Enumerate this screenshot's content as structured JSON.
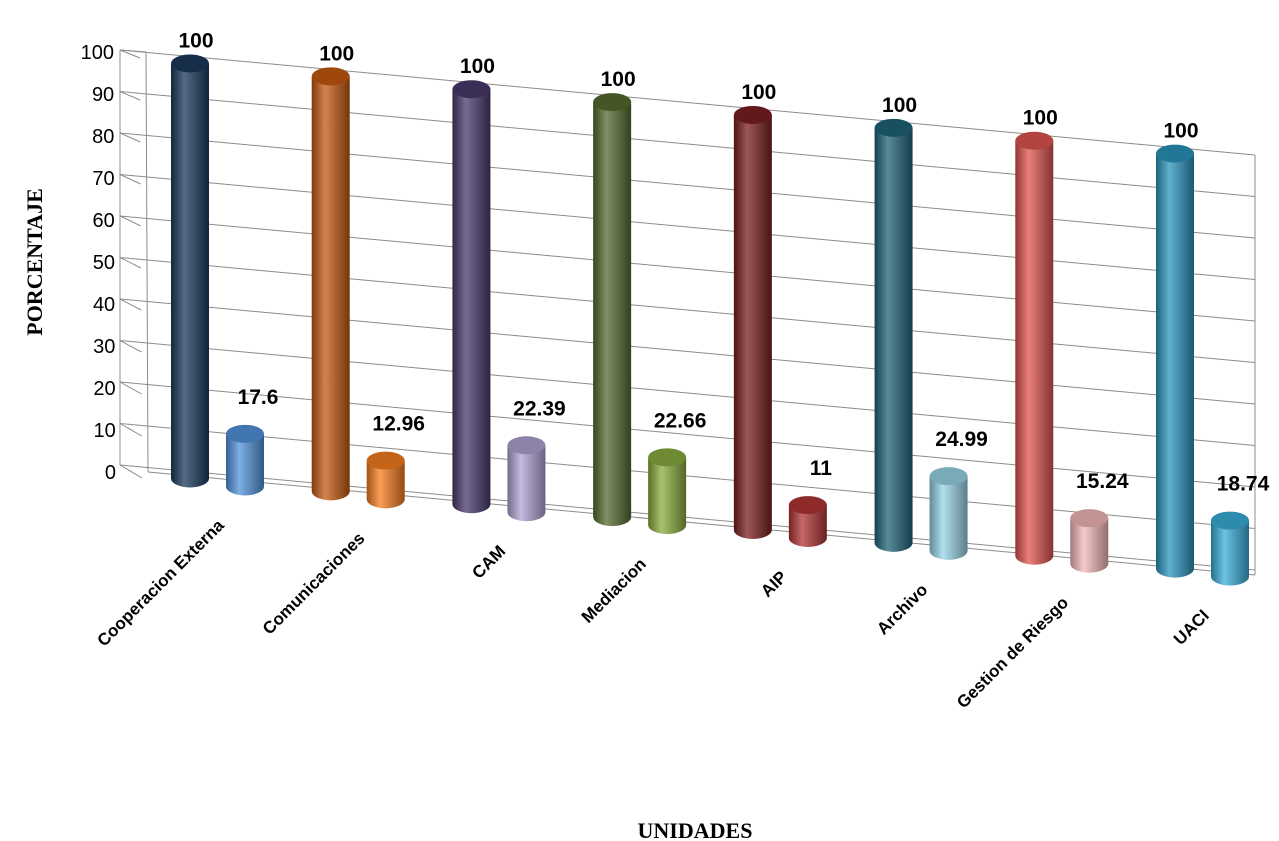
{
  "chart_data": {
    "type": "bar",
    "title": "",
    "xlabel": "UNIDADES",
    "ylabel": "PORCENTAJE",
    "ylim": [
      0,
      100
    ],
    "yticks": [
      0,
      10,
      20,
      30,
      40,
      50,
      60,
      70,
      80,
      90,
      100
    ],
    "grid": true,
    "legend": "none",
    "categories": [
      "Cooperacion Externa",
      "Comunicaciones",
      "CAM",
      "Mediacion",
      "AIP",
      "Archivo",
      "Gestion de Riesgo",
      "UACI"
    ],
    "series": [
      {
        "values": [
          100,
          100,
          100,
          100,
          100,
          100,
          100,
          100
        ]
      },
      {
        "values": [
          17.6,
          12.96,
          22.39,
          22.66,
          11,
          24.99,
          15.24,
          18.74
        ]
      }
    ],
    "data_labels": [
      [
        "100",
        "100",
        "100",
        "100",
        "100",
        "100",
        "100",
        "100"
      ],
      [
        "17.6",
        "12.96",
        "22.39",
        "22.66",
        "11",
        "24.99",
        "15.24",
        "18.74"
      ]
    ],
    "colors": {
      "series1": [
        "#1b3a5c",
        "#c55a11",
        "#4a3a6c",
        "#556b2f",
        "#7b1f22",
        "#1f6478",
        "#e05550",
        "#2b95bd"
      ],
      "series2": [
        "#5394dc",
        "#f57d1f",
        "#b3a2d5",
        "#8aad3f",
        "#b23535",
        "#97d4e6",
        "#f4b8b8",
        "#3aaed8"
      ]
    }
  }
}
